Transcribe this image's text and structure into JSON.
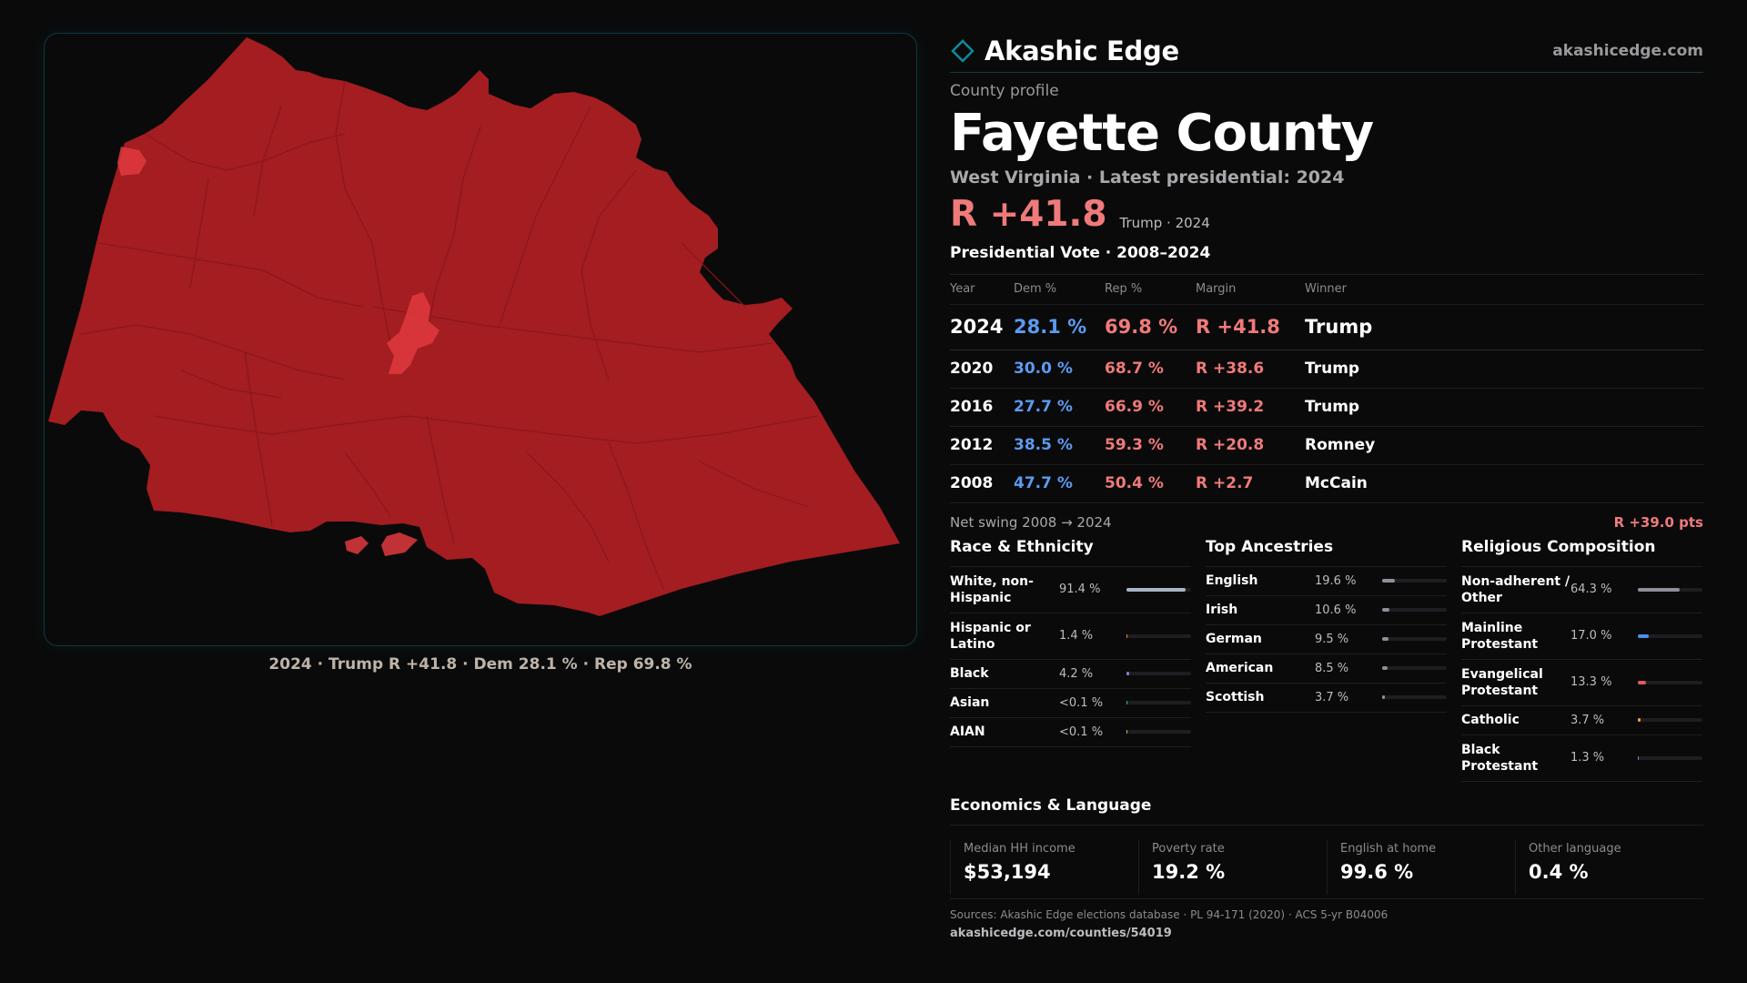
{
  "brand": {
    "name": "Akashic Edge",
    "site": "akashicedge.com",
    "logo_icon": "diamond-outline-icon",
    "accent": "#0a8f9e"
  },
  "header": {
    "kicker": "County profile",
    "county": "Fayette County",
    "subtitle": "West Virginia · Latest presidential: 2024",
    "margin": "R +41.8",
    "margin_note": "Trump · 2024"
  },
  "map": {
    "caption": "2024 · Trump R +41.8 · Dem 28.1 % · Rep 69.8 %",
    "fill_color": "#a31d21",
    "highlight_color": "#e0393d"
  },
  "presidential": {
    "title": "Presidential Vote · 2008–2024",
    "columns": [
      "Year",
      "Dem %",
      "Rep %",
      "Margin",
      "Winner"
    ],
    "rows": [
      {
        "year": "2024",
        "dem": "28.1 %",
        "rep": "69.8 %",
        "margin": "R +41.8",
        "winner": "Trump"
      },
      {
        "year": "2020",
        "dem": "30.0 %",
        "rep": "68.7 %",
        "margin": "R +38.6",
        "winner": "Trump"
      },
      {
        "year": "2016",
        "dem": "27.7 %",
        "rep": "66.9 %",
        "margin": "R +39.2",
        "winner": "Trump"
      },
      {
        "year": "2012",
        "dem": "38.5 %",
        "rep": "59.3 %",
        "margin": "R +20.8",
        "winner": "Romney"
      },
      {
        "year": "2008",
        "dem": "47.7 %",
        "rep": "50.4 %",
        "margin": "R +2.7",
        "winner": "McCain"
      }
    ],
    "swing_label": "Net swing 2008 → 2024",
    "swing_value": "R +39.0 pts",
    "dem_color": "#5b9bf0",
    "rep_color": "#f07a7a"
  },
  "race": {
    "title": "Race & Ethnicity",
    "rows": [
      {
        "label": "White, non-Hispanic",
        "value": "91.4 %",
        "pct": 91.4,
        "color": "#a9b4c4"
      },
      {
        "label": "Hispanic or Latino",
        "value": "1.4 %",
        "pct": 1.4,
        "color": "#e0913a"
      },
      {
        "label": "Black",
        "value": "4.2 %",
        "pct": 4.2,
        "color": "#8f7bd9"
      },
      {
        "label": "Asian",
        "value": "<0.1 %",
        "pct": 0.05,
        "color": "#3fb6a8"
      },
      {
        "label": "AIAN",
        "value": "<0.1 %",
        "pct": 0.05,
        "color": "#c9b45a"
      }
    ]
  },
  "ancestry": {
    "title": "Top Ancestries",
    "rows": [
      {
        "label": "English",
        "value": "19.6 %",
        "pct": 19.6,
        "color": "#8d9099"
      },
      {
        "label": "Irish",
        "value": "10.6 %",
        "pct": 10.6,
        "color": "#8d9099"
      },
      {
        "label": "German",
        "value": "9.5 %",
        "pct": 9.5,
        "color": "#8d9099"
      },
      {
        "label": "American",
        "value": "8.5 %",
        "pct": 8.5,
        "color": "#8d9099"
      },
      {
        "label": "Scottish",
        "value": "3.7 %",
        "pct": 3.7,
        "color": "#8d9099"
      }
    ]
  },
  "religion": {
    "title": "Religious Composition",
    "rows": [
      {
        "label": "Non-adherent / Other",
        "value": "64.3 %",
        "pct": 64.3,
        "color": "#8d9099"
      },
      {
        "label": "Mainline Protestant",
        "value": "17.0 %",
        "pct": 17.0,
        "color": "#4f8fe6"
      },
      {
        "label": "Evangelical Protestant",
        "value": "13.3 %",
        "pct": 13.3,
        "color": "#e35a5a"
      },
      {
        "label": "Catholic",
        "value": "3.7 %",
        "pct": 3.7,
        "color": "#e0a93a"
      },
      {
        "label": "Black Protestant",
        "value": "1.3 %",
        "pct": 1.3,
        "color": "#8f7bd9"
      }
    ]
  },
  "economics": {
    "title": "Economics & Language",
    "cells": [
      {
        "label": "Median HH income",
        "value": "$53,194"
      },
      {
        "label": "Poverty rate",
        "value": "19.2 %"
      },
      {
        "label": "English at home",
        "value": "99.6 %"
      },
      {
        "label": "Other language",
        "value": "0.4 %"
      }
    ]
  },
  "footer": {
    "sources": "Sources: Akashic Edge elections database · PL 94-171 (2020) · ACS 5-yr B04006",
    "url": "akashicedge.com/counties/54019"
  }
}
